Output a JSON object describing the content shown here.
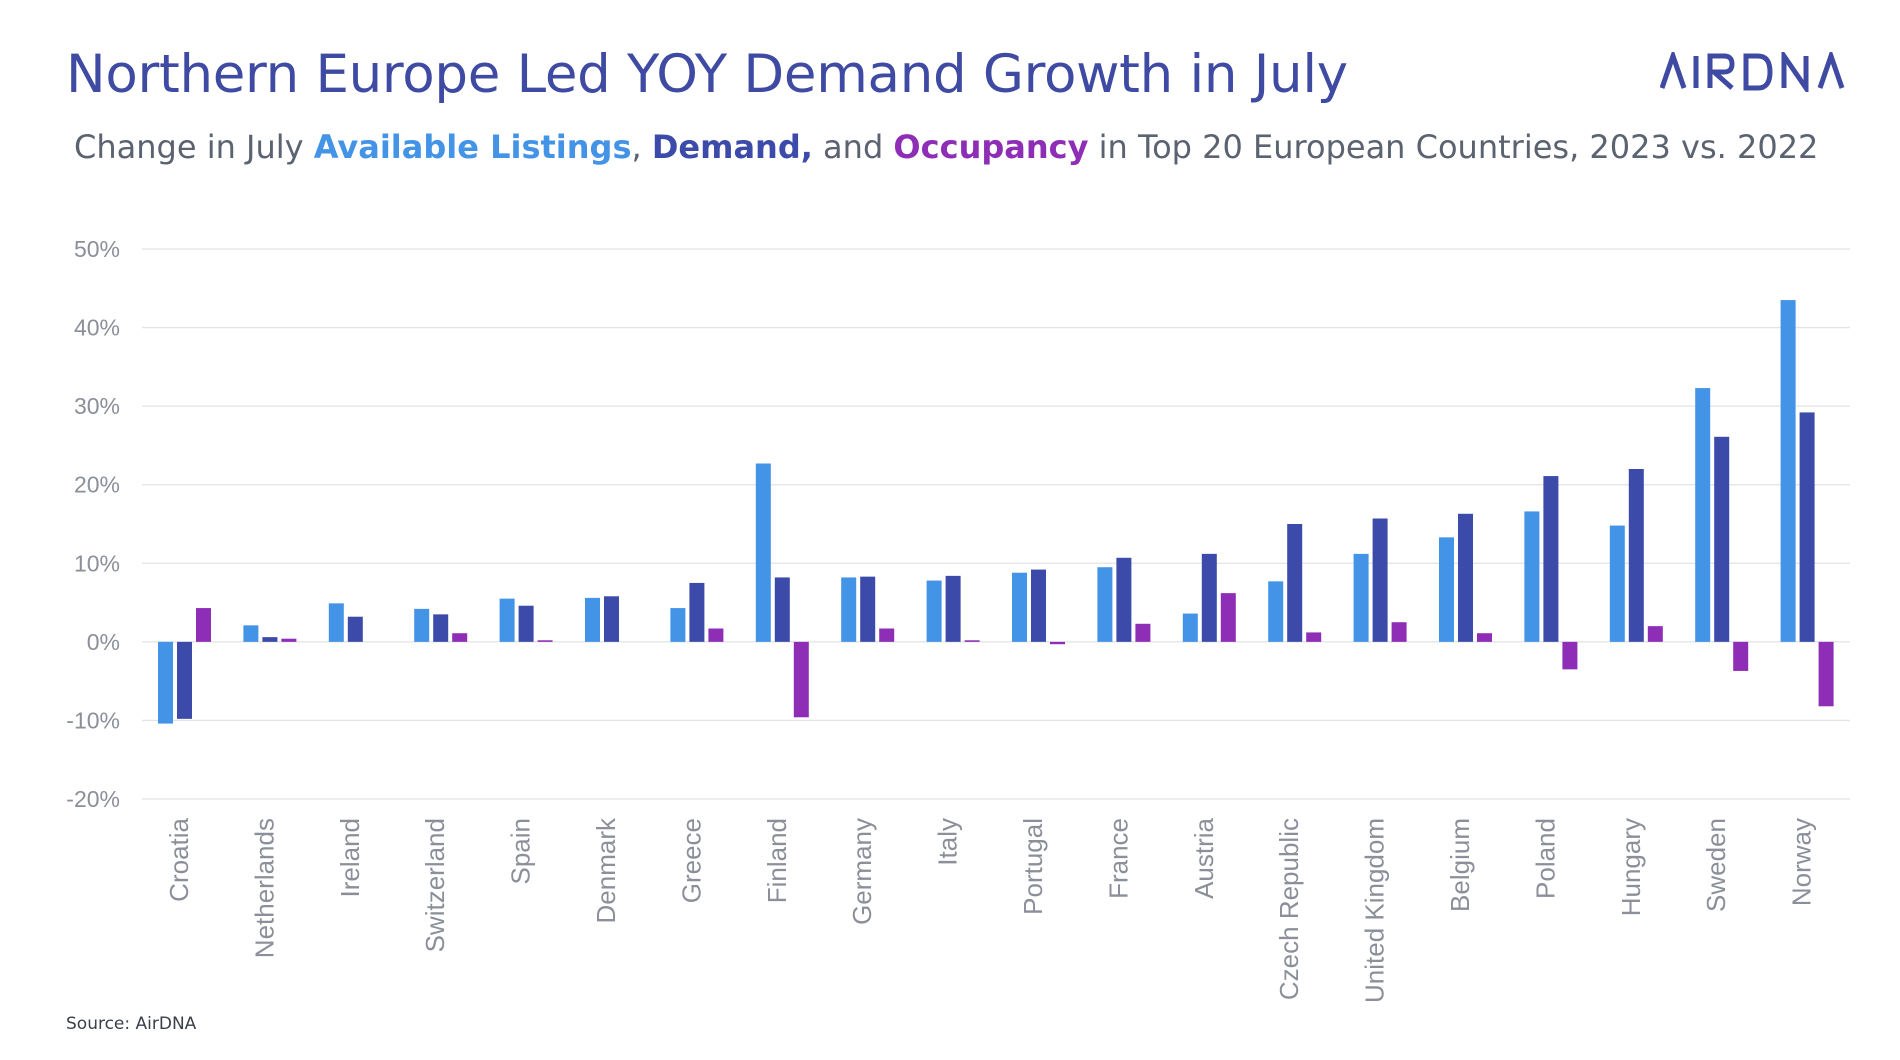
{
  "header": {
    "title": "Northern Europe Led YOY Demand Growth in July",
    "logo_text": "AIRDNA"
  },
  "subtitle": {
    "prefix": "Change in July ",
    "listings": "Available Listings",
    "sep1": ", ",
    "demand": "Demand,",
    "sep2": " and ",
    "occupancy": "Occupancy",
    "suffix": " in Top 20 European Countries, 2023 vs. 2022"
  },
  "colors": {
    "title": "#3f4aa3",
    "listings": "#4393e6",
    "demand": "#3c4aaa",
    "occupancy": "#8e2db6"
  },
  "footer": {
    "source": "Source: AirDNA"
  },
  "chart_data": {
    "type": "bar",
    "title": "Northern Europe Led YOY Demand Growth in July",
    "xlabel": "",
    "ylabel": "",
    "ylim": [
      -20,
      50
    ],
    "yticks": [
      50,
      40,
      30,
      20,
      10,
      0,
      -10,
      -20
    ],
    "ytick_labels": [
      "50%",
      "40%",
      "30%",
      "20%",
      "10%",
      "0%",
      "-10%",
      "-20%"
    ],
    "grid": true,
    "legend": "in subtitle",
    "categories": [
      "Croatia",
      "Netherlands",
      "Ireland",
      "Switzerland",
      "Spain",
      "Denmark",
      "Greece",
      "Finland",
      "Germany",
      "Italy",
      "Portugal",
      "France",
      "Austria",
      "Czech Republic",
      "United Kingdom",
      "Belgium",
      "Poland",
      "Hungary",
      "Sweden",
      "Norway"
    ],
    "series": [
      {
        "name": "Available Listings",
        "color": "#4393e6",
        "values": [
          -10.4,
          2.1,
          4.9,
          4.2,
          5.5,
          5.6,
          4.3,
          22.7,
          8.2,
          7.8,
          8.8,
          9.5,
          3.6,
          7.7,
          11.2,
          13.3,
          16.6,
          14.8,
          32.3,
          43.5
        ]
      },
      {
        "name": "Demand",
        "color": "#3c4aaa",
        "values": [
          -9.8,
          0.6,
          3.2,
          3.5,
          4.6,
          5.8,
          7.5,
          8.2,
          8.3,
          8.4,
          9.2,
          10.7,
          11.2,
          15.0,
          15.7,
          16.3,
          21.1,
          22.0,
          26.1,
          29.2
        ]
      },
      {
        "name": "Occupancy",
        "color": "#8e2db6",
        "values": [
          4.3,
          0.4,
          0.0,
          1.1,
          0.2,
          0.0,
          1.7,
          -9.6,
          1.7,
          0.2,
          -0.3,
          2.3,
          6.2,
          1.2,
          2.5,
          1.1,
          -3.5,
          2.0,
          -3.7,
          -8.2
        ]
      }
    ]
  }
}
